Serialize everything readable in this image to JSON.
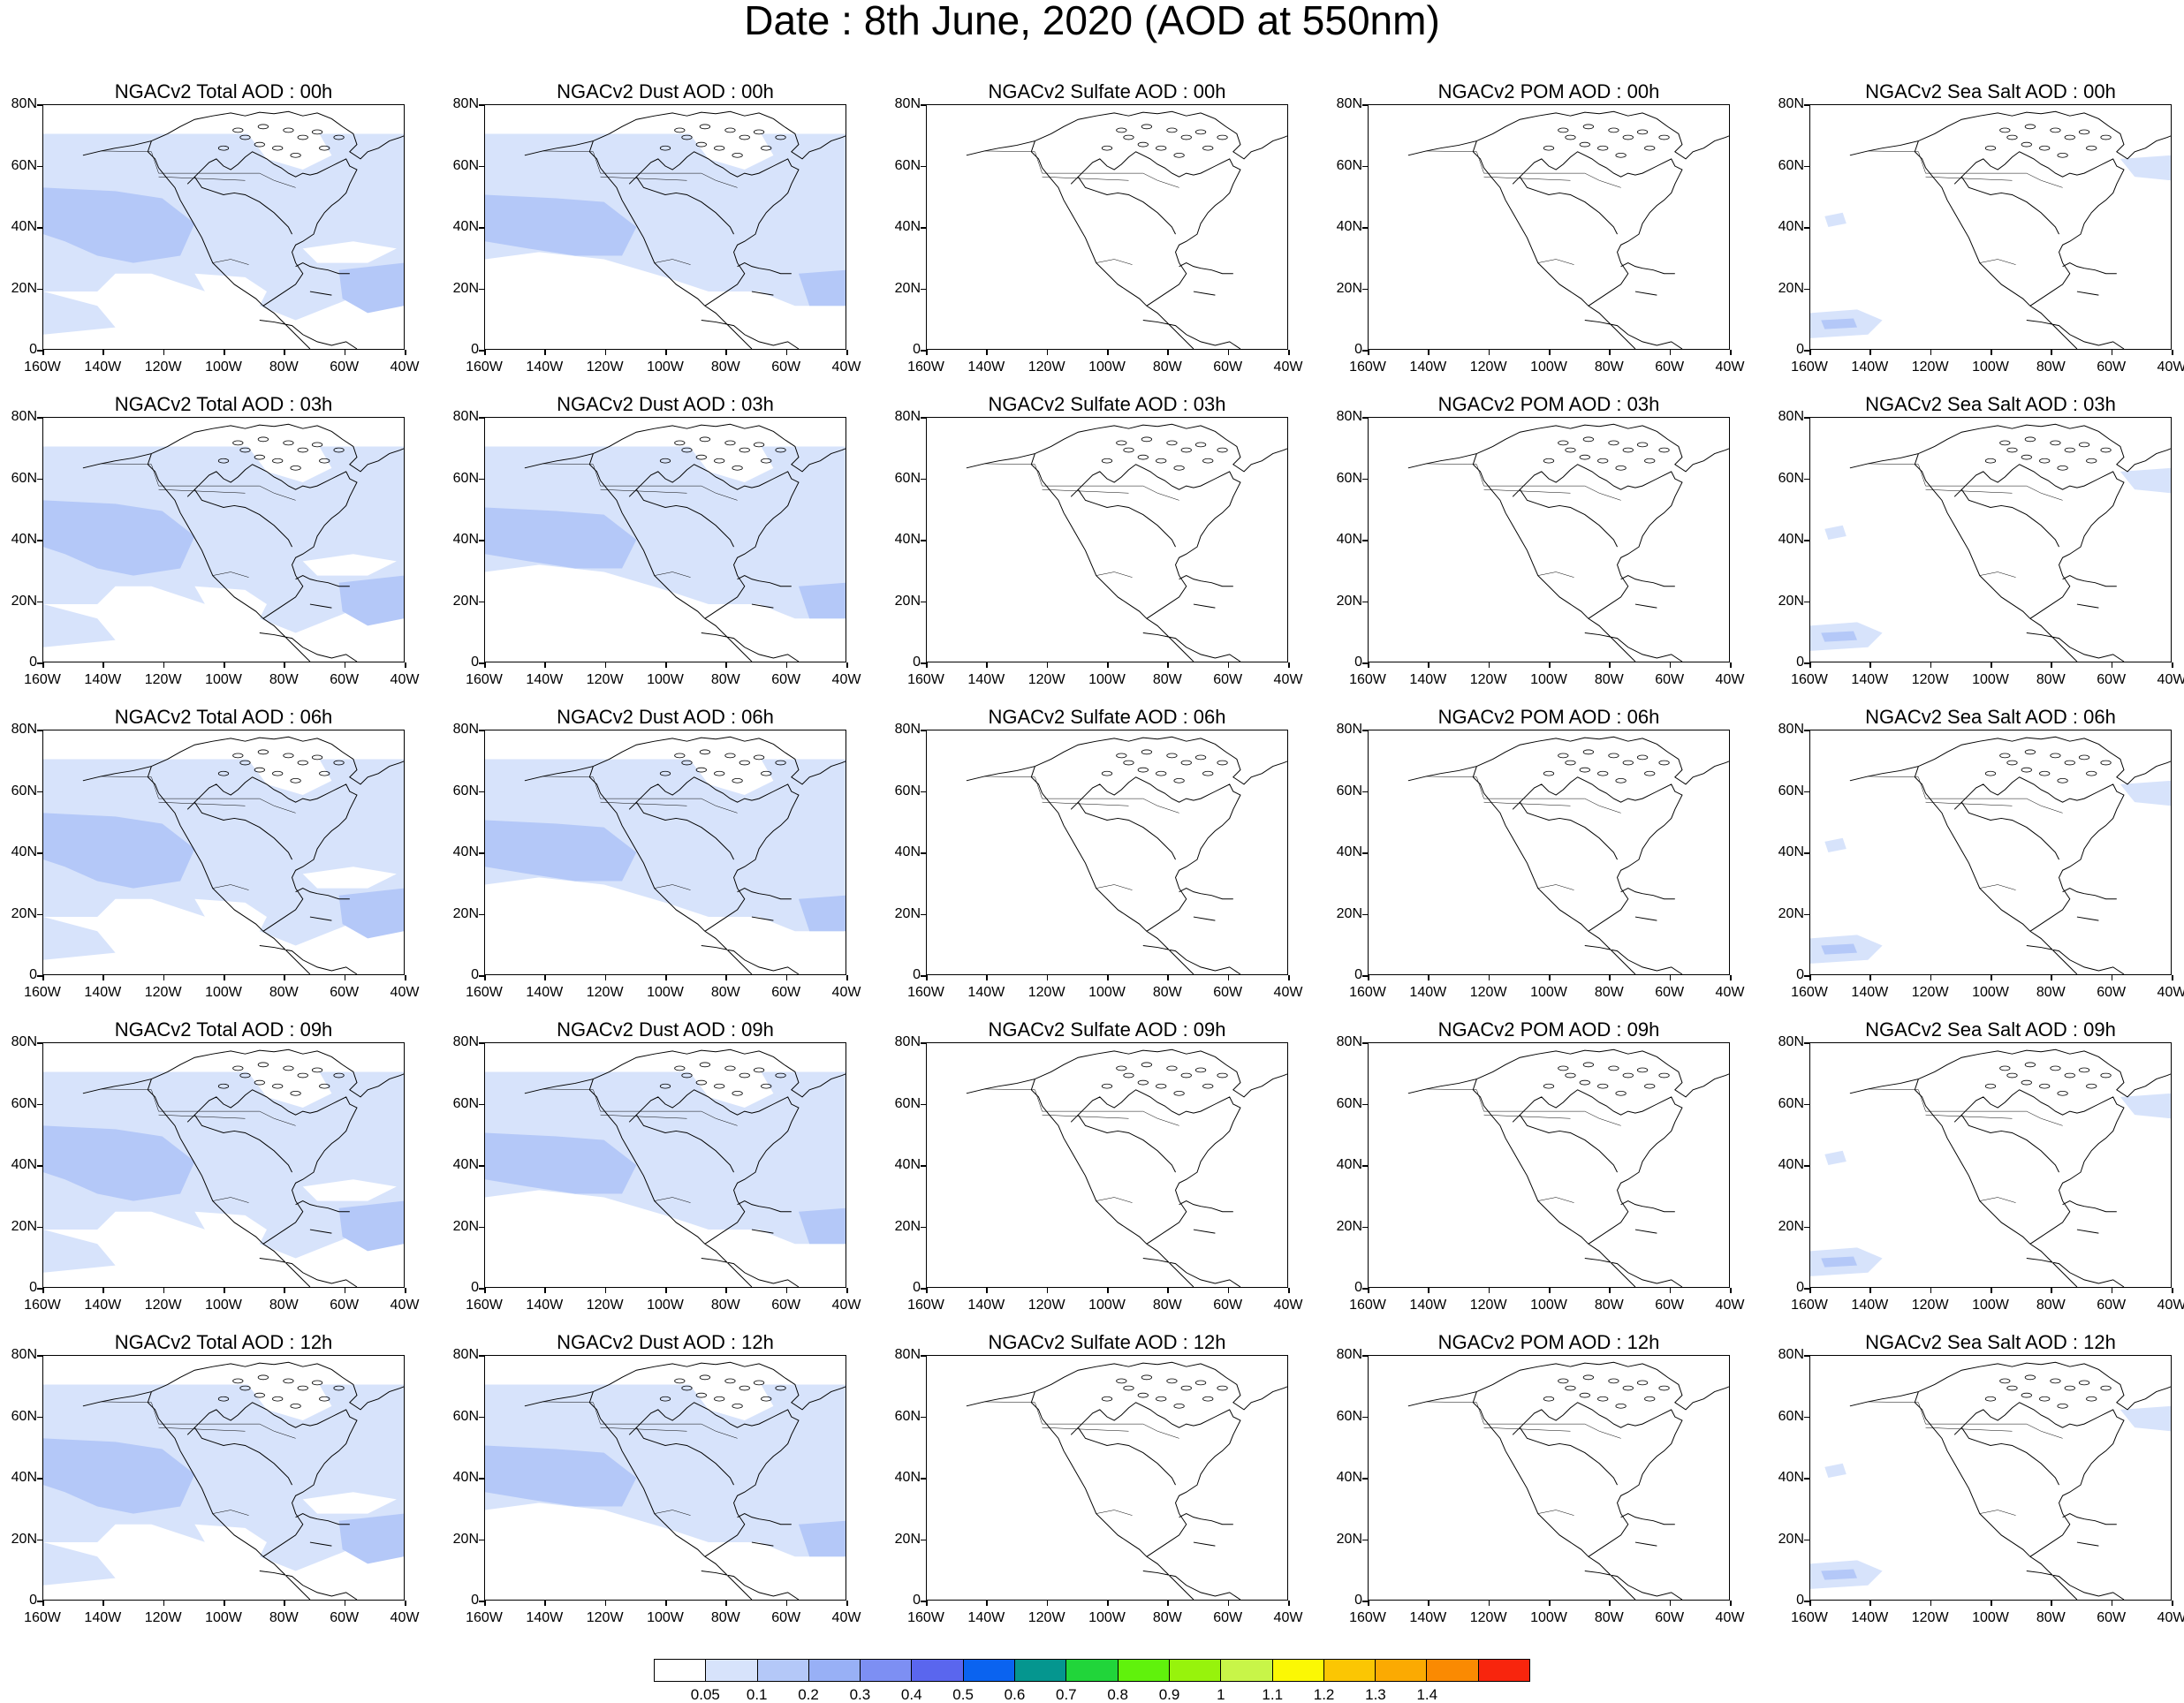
{
  "title": "Date : 8th June, 2020 (AOD at 550nm)",
  "y_ticks": [
    "80N",
    "60N",
    "40N",
    "20N",
    "0"
  ],
  "x_ticks": [
    "160W",
    "140W",
    "120W",
    "100W",
    "80W",
    "60W",
    "40W"
  ],
  "columns": [
    "total",
    "dust",
    "sulfate",
    "pom",
    "seasalt"
  ],
  "panel_titles": [
    [
      "NGACv2 Total AOD : 00h",
      "NGACv2 Dust AOD : 00h",
      "NGACv2 Sulfate AOD : 00h",
      "NGACv2 POM AOD : 00h",
      "NGACv2 Sea Salt AOD : 00h"
    ],
    [
      "NGACv2 Total AOD : 03h",
      "NGACv2 Dust AOD : 03h",
      "NGACv2 Sulfate AOD : 03h",
      "NGACv2 POM AOD : 03h",
      "NGACv2 Sea Salt AOD : 03h"
    ],
    [
      "NGACv2 Total AOD : 06h",
      "NGACv2 Dust AOD : 06h",
      "NGACv2 Sulfate AOD : 06h",
      "NGACv2 POM AOD : 06h",
      "NGACv2 Sea Salt AOD : 06h"
    ],
    [
      "NGACv2 Total AOD : 09h",
      "NGACv2 Dust AOD : 09h",
      "NGACv2 Sulfate AOD : 09h",
      "NGACv2 POM AOD : 09h",
      "NGACv2 Sea Salt  AOD : 09h"
    ],
    [
      "NGACv2 Total AOD  : 12h",
      "NGACv2 Dust AOD : 12h",
      "NGACv2 Sulfate AOD : 12h",
      "NGACv2 POM  AOD : 12h",
      "NGACv2 Sea Salt  AOD : 12h"
    ]
  ],
  "map_extent": {
    "lon": [
      -160,
      -40
    ],
    "lat": [
      0,
      80
    ]
  },
  "colorbar": {
    "labels": [
      "0.05",
      "0.1",
      "0.2",
      "0.3",
      "0.4",
      "0.5",
      "0.6",
      "0.7",
      "0.8",
      "0.9",
      "1",
      "1.1",
      "1.2",
      "1.3",
      "1.4"
    ],
    "colors": [
      "#ffffff",
      "#d7e3fb",
      "#b4c8f8",
      "#98b0f6",
      "#7d8ff3",
      "#5a66ee",
      "#0a63f0",
      "#05968f",
      "#21d53a",
      "#60f20c",
      "#97f30c",
      "#c8f548",
      "#fbf804",
      "#fbc603",
      "#fbaa02",
      "#fa8a02",
      "#f8250d"
    ]
  }
}
